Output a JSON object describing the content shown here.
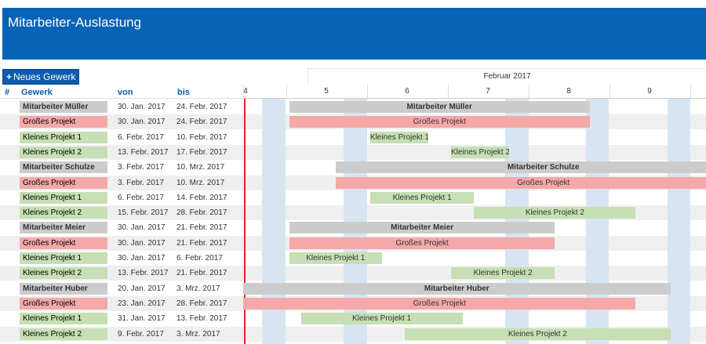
{
  "app": {
    "title": "Mitarbeiter-Auslastung"
  },
  "toolbar": {
    "add_label": "Neues Gewerk"
  },
  "table": {
    "headers": {
      "num": "#",
      "gewerk": "Gewerk",
      "von": "von",
      "bis": "bis"
    },
    "rows": [
      {
        "type": "employee",
        "label": "Mitarbeiter Müller",
        "von": "30. Jan. 2017",
        "bis": "24. Febr. 2017"
      },
      {
        "type": "big",
        "label": "Großes Projekt",
        "von": "30. Jan. 2017",
        "bis": "24. Febr. 2017"
      },
      {
        "type": "small",
        "label": "Kleines Projekt 1",
        "von": "6. Febr. 2017",
        "bis": "10. Febr. 2017"
      },
      {
        "type": "small",
        "label": "Kleines Projekt 2",
        "von": "13. Febr. 2017",
        "bis": "17. Febr. 2017"
      },
      {
        "type": "employee",
        "label": "Mitarbeiter Schulze",
        "von": "3. Febr. 2017",
        "bis": "10. Mrz. 2017"
      },
      {
        "type": "big",
        "label": "Großes Projekt",
        "von": "3. Febr. 2017",
        "bis": "10. Mrz. 2017"
      },
      {
        "type": "small",
        "label": "Kleines Projekt 1",
        "von": "6. Febr. 2017",
        "bis": "14. Febr. 2017"
      },
      {
        "type": "small",
        "label": "Kleines Projekt 2",
        "von": "15. Febr. 2017",
        "bis": "28. Febr. 2017"
      },
      {
        "type": "employee",
        "label": "Mitarbeiter Meier",
        "von": "30. Jan. 2017",
        "bis": "21. Febr. 2017"
      },
      {
        "type": "big",
        "label": "Großes Projekt",
        "von": "30. Jan. 2017",
        "bis": "21. Febr. 2017"
      },
      {
        "type": "small",
        "label": "Kleines Projekt 1",
        "von": "30. Jan. 2017",
        "bis": "6. Febr. 2017"
      },
      {
        "type": "small",
        "label": "Kleines Projekt 2",
        "von": "13. Febr. 2017",
        "bis": "21. Febr. 2017"
      },
      {
        "type": "employee",
        "label": "Mitarbeiter Huber",
        "von": "20. Jan. 2017",
        "bis": "3. Mrz. 2017"
      },
      {
        "type": "big",
        "label": "Großes Projekt",
        "von": "23. Jan. 2017",
        "bis": "28. Febr. 2017"
      },
      {
        "type": "small",
        "label": "Kleines Projekt 1",
        "von": "31. Jan. 2017",
        "bis": "13. Febr. 2017"
      },
      {
        "type": "small",
        "label": "Kleines Projekt 2",
        "von": "9. Febr. 2017",
        "bis": "3. Mrz. 2017"
      }
    ]
  },
  "timeline": {
    "month_label": "Februar 2017",
    "week_labels": [
      "4",
      "5",
      "6",
      "7",
      "8",
      "9"
    ]
  },
  "colors": {
    "employee": "#cccccc",
    "big": "#f4a8a8",
    "small": "#c6dfb4",
    "weekend": "#d7e5f2",
    "today": "#e2262b",
    "header": "#0763b6"
  }
}
